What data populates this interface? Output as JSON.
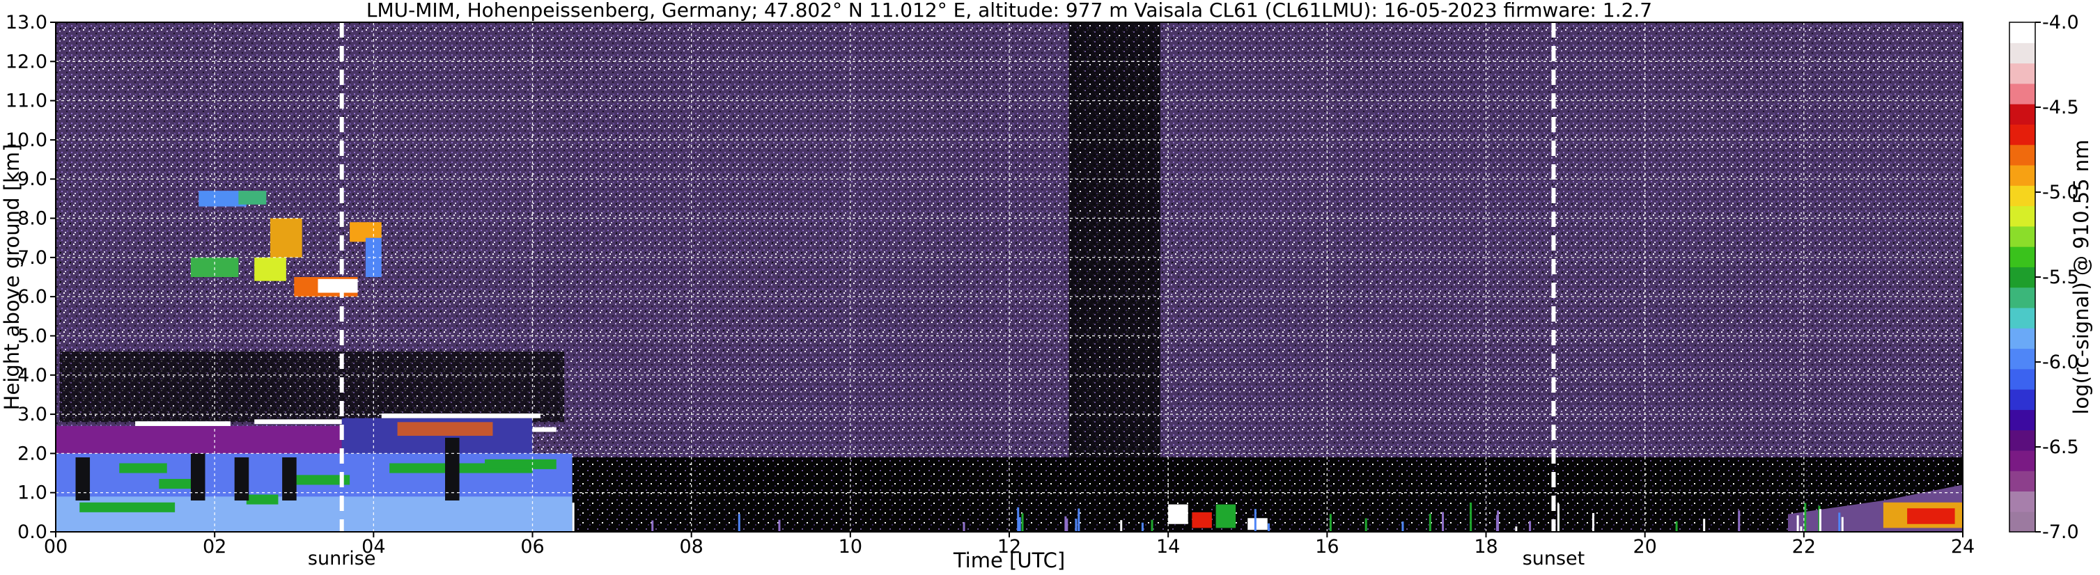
{
  "chart_data": {
    "type": "heatmap",
    "title": "LMU-MIM, Hohenpeissenberg, Germany; 47.802° N 11.012° E, altitude: 977 m    Vaisala CL61 (CL61LMU): 16-05-2023    firmware: 1.2.7",
    "xlabel": "Time [UTC]",
    "ylabel": "Height above ground [km]",
    "colorbar_label": "log(rc-signal) @ 910.55 nm",
    "xlim": [
      0,
      24
    ],
    "ylim": [
      0,
      13
    ],
    "x_ticks": [
      "00",
      "02",
      "04",
      "06",
      "08",
      "10",
      "12",
      "14",
      "16",
      "18",
      "20",
      "22",
      "24"
    ],
    "y_ticks": [
      "0.0",
      "1.0",
      "2.0",
      "3.0",
      "4.0",
      "5.0",
      "6.0",
      "7.0",
      "8.0",
      "9.0",
      "10.0",
      "11.0",
      "12.0",
      "13.0"
    ],
    "colorbar_ticks": [
      "-4.0",
      "-4.5",
      "-5.0",
      "-5.5",
      "-6.0",
      "-6.5",
      "-7.0"
    ],
    "colorbar_range": [
      -7.0,
      -4.0
    ],
    "grid": true,
    "annotations": [
      {
        "label": "sunrise",
        "x": 3.6
      },
      {
        "label": "sunset",
        "x": 18.85
      }
    ],
    "colormap": [
      "#9c7aa0",
      "#a77fab",
      "#8d3f8c",
      "#7a1a84",
      "#5b0e7d",
      "#3c0aa0",
      "#2d32d2",
      "#3b63f0",
      "#4f86f7",
      "#6aa9f7",
      "#4cc9c8",
      "#3bb67a",
      "#1e9e2c",
      "#3ac21c",
      "#8bdd2a",
      "#d7ee28",
      "#f6d51e",
      "#f7a113",
      "#f06a0d",
      "#e51e0b",
      "#cd0f14",
      "#ee7d88",
      "#f2bcbf",
      "#ece4e4",
      "#ffffff"
    ],
    "features": {
      "boundary_layer_top_km": 2.0,
      "cloud_layer_km": [
        6.0,
        8.8
      ],
      "cloud_time_range": [
        1.8,
        4.1
      ],
      "evening_layer_start": 21.8
    }
  }
}
